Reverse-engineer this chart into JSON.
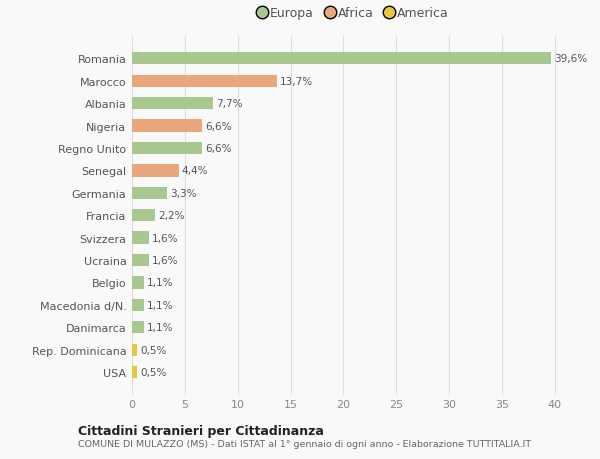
{
  "categories": [
    "Romania",
    "Marocco",
    "Albania",
    "Nigeria",
    "Regno Unito",
    "Senegal",
    "Germania",
    "Francia",
    "Svizzera",
    "Ucraina",
    "Belgio",
    "Macedonia d/N.",
    "Danimarca",
    "Rep. Dominicana",
    "USA"
  ],
  "values": [
    39.6,
    13.7,
    7.7,
    6.6,
    6.6,
    4.4,
    3.3,
    2.2,
    1.6,
    1.6,
    1.1,
    1.1,
    1.1,
    0.5,
    0.5
  ],
  "colors": [
    "#a8c890",
    "#e8a87c",
    "#a8c890",
    "#e8a87c",
    "#a8c890",
    "#e8a87c",
    "#a8c890",
    "#a8c890",
    "#a8c890",
    "#a8c890",
    "#a8c890",
    "#a8c890",
    "#a8c890",
    "#e8c840",
    "#e8c840"
  ],
  "labels": [
    "39,6%",
    "13,7%",
    "7,7%",
    "6,6%",
    "6,6%",
    "4,4%",
    "3,3%",
    "2,2%",
    "1,6%",
    "1,6%",
    "1,1%",
    "1,1%",
    "1,1%",
    "0,5%",
    "0,5%"
  ],
  "legend": [
    {
      "label": "Europa",
      "color": "#a8c890"
    },
    {
      "label": "Africa",
      "color": "#e8a87c"
    },
    {
      "label": "America",
      "color": "#e8c840"
    }
  ],
  "xlim": [
    0,
    42
  ],
  "xticks": [
    0,
    5,
    10,
    15,
    20,
    25,
    30,
    35,
    40
  ],
  "title": "Cittadini Stranieri per Cittadinanza",
  "subtitle": "COMUNE DI MULAZZO (MS) - Dati ISTAT al 1° gennaio di ogni anno - Elaborazione TUTTITALIA.IT",
  "background_color": "#f9f9f9",
  "grid_color": "#dddddd",
  "bar_height": 0.55,
  "label_fontsize": 7.5,
  "ytick_fontsize": 8.0,
  "xtick_fontsize": 8.0
}
